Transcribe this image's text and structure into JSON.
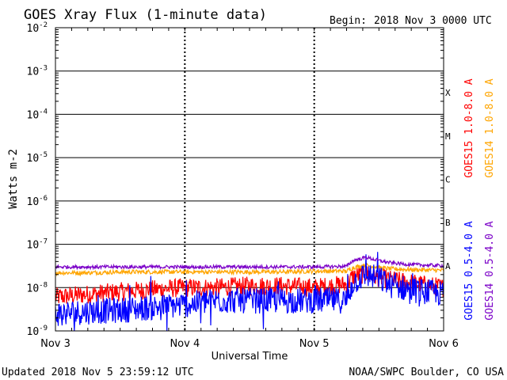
{
  "title": "GOES Xray Flux (1-minute data)",
  "begin_label": "Begin:",
  "begin_value": "2018 Nov 3 0000 UTC",
  "footer_left": "Updated 2018 Nov  5 23:59:12 UTC",
  "footer_right": "NOAA/SWPC Boulder, CO USA",
  "chart_data": {
    "type": "line",
    "title": "GOES Xray Flux (1-minute data)",
    "xlabel": "Universal Time",
    "ylabel": "Watts m-2",
    "yscale": "log",
    "ylim": [
      1e-09,
      0.01
    ],
    "xlim_days": [
      0,
      3
    ],
    "x_ticks": [
      "Nov 3",
      "Nov 4",
      "Nov 5",
      "Nov 6"
    ],
    "y_ticks": [
      {
        "base": "10",
        "exp": "-9",
        "value": 1e-09
      },
      {
        "base": "10",
        "exp": "-8",
        "value": 1e-08
      },
      {
        "base": "10",
        "exp": "-7",
        "value": 1e-07
      },
      {
        "base": "10",
        "exp": "-6",
        "value": 1e-06
      },
      {
        "base": "10",
        "exp": "-5",
        "value": 1e-05
      },
      {
        "base": "10",
        "exp": "-4",
        "value": 0.0001
      },
      {
        "base": "10",
        "exp": "-3",
        "value": 0.001
      },
      {
        "base": "10",
        "exp": "-2",
        "value": 0.01
      }
    ],
    "flare_classes": [
      {
        "label": "A",
        "value": 1e-08
      },
      {
        "label": "B",
        "value": 1e-07
      },
      {
        "label": "C",
        "value": 1e-06
      },
      {
        "label": "M",
        "value": 1e-05
      },
      {
        "label": "X",
        "value": 0.0001
      }
    ],
    "grid": true,
    "legend_position": "right",
    "series": [
      {
        "name": "GOES15 1.0-8.0 A",
        "color": "#ff0000",
        "x": [
          0,
          0.25,
          0.5,
          0.75,
          1.0,
          1.25,
          1.5,
          1.75,
          2.0,
          2.25,
          2.3,
          2.4,
          2.5,
          2.6,
          2.75,
          3.0
        ],
        "y": [
          6e-09,
          7e-09,
          8e-09,
          9e-09,
          1e-08,
          1e-08,
          1.1e-08,
          1.1e-08,
          1e-08,
          1.2e-08,
          1.8e-08,
          2.1e-08,
          1.7e-08,
          1.5e-08,
          1.3e-08,
          1e-08
        ]
      },
      {
        "name": "GOES14 1.0-8.0 A",
        "color": "#ffa500",
        "x": [
          0,
          0.25,
          0.5,
          0.75,
          1.0,
          1.25,
          1.5,
          1.75,
          2.0,
          2.25,
          2.3,
          2.4,
          2.5,
          2.6,
          2.75,
          3.0
        ],
        "y": [
          2.2e-08,
          2.2e-08,
          2.3e-08,
          2.3e-08,
          2.3e-08,
          2.3e-08,
          2.3e-08,
          2.3e-08,
          2.4e-08,
          2.4e-08,
          2.9e-08,
          3.3e-08,
          2.9e-08,
          2.7e-08,
          2.6e-08,
          2.5e-08
        ]
      },
      {
        "name": "GOES15 0.5-4.0 A",
        "color": "#0000ff",
        "x": [
          0,
          0.25,
          0.5,
          0.75,
          1.0,
          1.25,
          1.5,
          1.75,
          2.0,
          2.25,
          2.3,
          2.4,
          2.5,
          2.6,
          2.75,
          3.0
        ],
        "y": [
          2.5e-09,
          2.8e-09,
          3e-09,
          3.5e-09,
          4e-09,
          5e-09,
          5e-09,
          5e-09,
          5e-09,
          5e-09,
          1.3e-08,
          2e-08,
          1.6e-08,
          1.1e-08,
          9e-09,
          7e-09
        ]
      },
      {
        "name": "GOES14 0.5-4.0 A",
        "color": "#7b00c8",
        "x": [
          0,
          0.25,
          0.5,
          0.75,
          1.0,
          1.25,
          1.5,
          1.75,
          2.0,
          2.25,
          2.3,
          2.4,
          2.5,
          2.6,
          2.75,
          3.0
        ],
        "y": [
          3e-08,
          3e-08,
          3e-08,
          3e-08,
          3e-08,
          3e-08,
          3e-08,
          3e-08,
          3e-08,
          3.1e-08,
          4.2e-08,
          5e-08,
          4.2e-08,
          3.7e-08,
          3.4e-08,
          3.2e-08
        ]
      }
    ]
  }
}
